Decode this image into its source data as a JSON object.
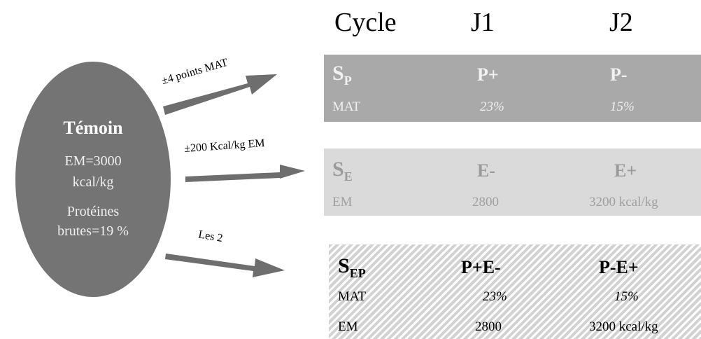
{
  "control": {
    "title": "Témoin",
    "energy_line1": "EM=3000",
    "energy_line2": "kcal/kg",
    "protein_line1": "Protéines",
    "protein_line2": "brutes=19 %"
  },
  "arrows": [
    {
      "label": "±4 points MAT"
    },
    {
      "label": "±200 Kcal/kg EM"
    },
    {
      "label": "Les 2"
    }
  ],
  "table": {
    "headers": [
      "Cycle",
      "J1",
      "J2"
    ],
    "blocks": [
      {
        "symbol": "S",
        "symbol_sub": "P",
        "conditions": [
          "P+",
          "P-"
        ],
        "rows": [
          {
            "label": "MAT",
            "values": [
              "23%",
              "15%"
            ]
          }
        ]
      },
      {
        "symbol": "S",
        "symbol_sub": "E",
        "conditions": [
          "E-",
          "E+"
        ],
        "rows": [
          {
            "label": "EM",
            "values": [
              "2800",
              "3200 kcal/kg"
            ]
          }
        ]
      },
      {
        "symbol": "S",
        "symbol_sub": "EP",
        "conditions": [
          "P+E-",
          "P-E+"
        ],
        "rows": [
          {
            "label": "MAT",
            "values": [
              "23%",
              "15%"
            ]
          },
          {
            "label": "EM",
            "values": [
              "2800",
              "3200 kcal/kg"
            ]
          }
        ]
      }
    ]
  },
  "colors": {
    "ellipse": "#747474",
    "arrow": "#6e6e6e",
    "block_p": "#a9a9a9",
    "block_e": "#dadada",
    "block_ep_hatch": "#d2d2d2"
  }
}
